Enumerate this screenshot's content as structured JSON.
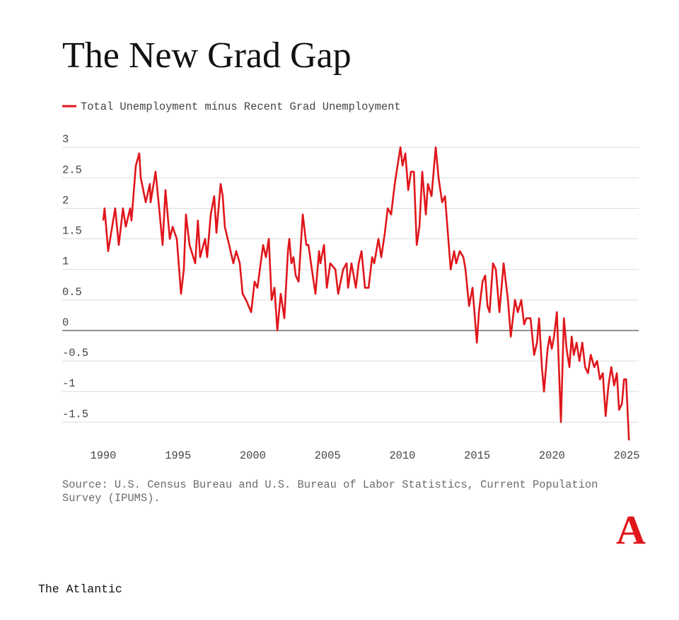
{
  "chart_data": {
    "type": "line",
    "title": "The New Grad Gap",
    "source": "Source: U.S. Census Bureau and U.S. Bureau of Labor Statistics, Current Population Survey (IPUMS).",
    "publisher": "The Atlantic",
    "logo": "A",
    "xlim": [
      1987.26,
      2025.8
    ],
    "ylim": [
      -1.89,
      3.21
    ],
    "xticks": [
      1990,
      1995,
      2000,
      2005,
      2010,
      2015,
      2020,
      2025
    ],
    "yticks": [
      3,
      2.5,
      2,
      1.5,
      1,
      0.5,
      0,
      -0.5,
      -1,
      -1.5
    ],
    "grid": true,
    "legend": "top-left",
    "x": [
      1990.0,
      1990.09,
      1990.33,
      1990.8,
      1991.04,
      1991.32,
      1991.51,
      1991.8,
      1991.89,
      1992.18,
      1992.41,
      1992.51,
      1992.84,
      1993.12,
      1993.17,
      1993.5,
      1993.74,
      1993.97,
      1994.16,
      1994.45,
      1994.64,
      1994.92,
      1995.2,
      1995.39,
      1995.53,
      1995.77,
      1996.15,
      1996.33,
      1996.48,
      1996.81,
      1996.95,
      1997.19,
      1997.42,
      1997.57,
      1997.85,
      1997.99,
      1998.13,
      1998.42,
      1998.7,
      1998.89,
      1999.13,
      1999.32,
      1999.55,
      1999.89,
      2000.12,
      2000.31,
      2000.69,
      2000.88,
      2001.07,
      2001.26,
      2001.45,
      2001.64,
      2001.87,
      2002.11,
      2002.35,
      2002.44,
      2002.58,
      2002.72,
      2002.87,
      2003.06,
      2003.34,
      2003.58,
      2003.72,
      2003.95,
      2004.19,
      2004.43,
      2004.52,
      2004.76,
      2004.95,
      2005.18,
      2005.52,
      2005.71,
      2006.04,
      2006.27,
      2006.37,
      2006.6,
      2006.89,
      2007.08,
      2007.27,
      2007.5,
      2007.74,
      2007.98,
      2008.12,
      2008.4,
      2008.59,
      2008.83,
      2009.02,
      2009.25,
      2009.49,
      2009.68,
      2009.87,
      2010.01,
      2010.2,
      2010.39,
      2010.58,
      2010.77,
      2010.96,
      2011.14,
      2011.33,
      2011.57,
      2011.71,
      2011.95,
      2012.23,
      2012.42,
      2012.66,
      2012.85,
      2013.04,
      2013.23,
      2013.46,
      2013.6,
      2013.84,
      2014.08,
      2014.22,
      2014.46,
      2014.69,
      2014.98,
      2015.12,
      2015.36,
      2015.54,
      2015.69,
      2015.83,
      2016.06,
      2016.25,
      2016.49,
      2016.77,
      2017.06,
      2017.25,
      2017.53,
      2017.72,
      2017.95,
      2018.14,
      2018.29,
      2018.57,
      2018.81,
      2019.0,
      2019.14,
      2019.33,
      2019.47,
      2019.71,
      2019.85,
      2019.99,
      2020.14,
      2020.33,
      2020.6,
      2020.8,
      2020.98,
      2021.17,
      2021.32,
      2021.46,
      2021.65,
      2021.84,
      2022.03,
      2022.22,
      2022.41,
      2022.6,
      2022.83,
      2023.02,
      2023.21,
      2023.4,
      2023.59,
      2023.78,
      2023.97,
      2024.16,
      2024.34,
      2024.49,
      2024.68,
      2024.82,
      2024.96,
      2025.15
    ],
    "series": [
      {
        "name": "Total Unemployment minus Recent Grad Unemployment",
        "color": "#e0161b",
        "values": [
          1.8,
          2.0,
          1.3,
          2.0,
          1.4,
          2.0,
          1.7,
          2.0,
          1.8,
          2.7,
          2.9,
          2.5,
          2.1,
          2.4,
          2.1,
          2.6,
          2.0,
          1.4,
          2.3,
          1.5,
          1.7,
          1.5,
          0.6,
          1.0,
          1.9,
          1.4,
          1.1,
          1.8,
          1.2,
          1.5,
          1.2,
          1.9,
          2.2,
          1.6,
          2.4,
          2.2,
          1.7,
          1.4,
          1.1,
          1.3,
          1.1,
          0.6,
          0.5,
          0.3,
          0.8,
          0.7,
          1.4,
          1.2,
          1.5,
          0.5,
          0.7,
          0.0,
          0.6,
          0.2,
          1.3,
          1.5,
          1.1,
          1.2,
          0.9,
          0.8,
          1.9,
          1.4,
          1.4,
          1.0,
          0.6,
          1.3,
          1.1,
          1.4,
          0.7,
          1.1,
          1.0,
          0.6,
          1.0,
          1.1,
          0.7,
          1.1,
          0.7,
          1.1,
          1.3,
          0.7,
          0.7,
          1.2,
          1.1,
          1.5,
          1.2,
          1.6,
          2.0,
          1.9,
          2.4,
          2.7,
          3.0,
          2.7,
          2.9,
          2.3,
          2.6,
          2.6,
          1.4,
          1.7,
          2.6,
          1.9,
          2.4,
          2.2,
          3.0,
          2.5,
          2.1,
          2.2,
          1.6,
          1.0,
          1.3,
          1.1,
          1.3,
          1.2,
          1.0,
          0.4,
          0.7,
          -0.2,
          0.3,
          0.8,
          0.9,
          0.4,
          0.3,
          1.1,
          1.0,
          0.3,
          1.1,
          0.5,
          -0.1,
          0.5,
          0.3,
          0.5,
          0.1,
          0.2,
          0.2,
          -0.4,
          -0.2,
          0.2,
          -0.6,
          -1.0,
          -0.3,
          -0.1,
          -0.3,
          -0.1,
          0.3,
          -1.5,
          0.2,
          -0.3,
          -0.6,
          -0.1,
          -0.4,
          -0.2,
          -0.5,
          -0.2,
          -0.6,
          -0.7,
          -0.4,
          -0.6,
          -0.5,
          -0.8,
          -0.7,
          -1.4,
          -0.9,
          -0.6,
          -0.9,
          -0.7,
          -1.3,
          -1.2,
          -0.8,
          -0.8,
          -1.8
        ]
      }
    ]
  }
}
